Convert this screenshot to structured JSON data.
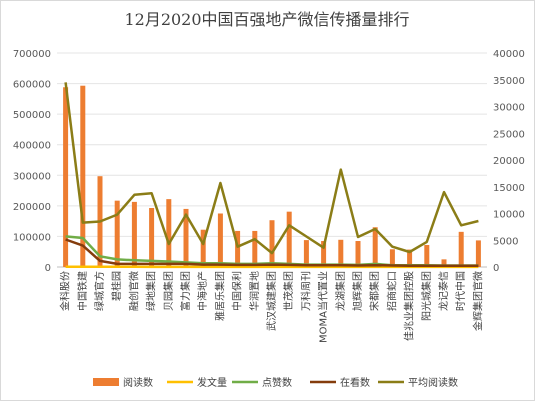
{
  "chart_data": {
    "type": "bar",
    "title": "12月2020中国百强地产微信传播量排行",
    "categories": [
      "金科股份",
      "中国铁建",
      "绿城官方",
      "碧桂园",
      "融创官微",
      "绿地集团",
      "贝园集团",
      "富力集团",
      "中海地产",
      "雅居乐集团",
      "中国保利",
      "华润置地",
      "武汉城建集团",
      "世茂集团",
      "万科周刊",
      "MOMA当代置业",
      "龙湖集团",
      "旭辉集团",
      "宋都集团",
      "招商蛇口",
      "佳兆业集团控股",
      "阳光城集团",
      "龙记泰信",
      "时代中国",
      "金辉集团官微"
    ],
    "y_left": {
      "ticks": [
        0,
        100000,
        200000,
        300000,
        400000,
        500000,
        600000,
        700000
      ],
      "ylim": [
        0,
        700000
      ]
    },
    "y_right": {
      "ticks": [
        0,
        5000,
        10000,
        15000,
        20000,
        25000,
        30000,
        35000,
        40000
      ],
      "ylim": [
        0,
        40000
      ]
    },
    "series": [
      {
        "name": "阅读数",
        "type": "bar",
        "axis": "left",
        "color": "#ED7D31",
        "values": [
          588000,
          593000,
          297000,
          217000,
          213000,
          193000,
          222000,
          190000,
          122000,
          175000,
          118000,
          118000,
          153000,
          181000,
          88000,
          85000,
          89000,
          85000,
          130000,
          58000,
          57000,
          72000,
          25000,
          115000,
          87000
        ]
      },
      {
        "name": "发文量",
        "type": "line",
        "axis": "left",
        "color": "#FFC000",
        "values": [
          1000,
          800,
          600,
          500,
          500,
          400,
          400,
          400,
          300,
          300,
          300,
          300,
          300,
          300,
          300,
          300,
          300,
          200,
          200,
          200,
          200,
          200,
          200,
          200,
          200
        ]
      },
      {
        "name": "点赞数",
        "type": "line",
        "axis": "left",
        "color": "#70AD47",
        "values": [
          100000,
          95000,
          35000,
          25000,
          22000,
          20000,
          18000,
          15000,
          12000,
          12000,
          10000,
          10000,
          12000,
          10000,
          8000,
          8000,
          8000,
          7000,
          10000,
          6000,
          6000,
          6000,
          5000,
          5000,
          5000
        ]
      },
      {
        "name": "在看数",
        "type": "line",
        "axis": "left",
        "color": "#843C0C",
        "values": [
          90000,
          70000,
          20000,
          10000,
          10000,
          10000,
          10000,
          10000,
          8000,
          8000,
          7000,
          7000,
          8000,
          7000,
          6000,
          6000,
          6000,
          5000,
          6000,
          5000,
          4000,
          4000,
          4000,
          4000,
          4000
        ]
      },
      {
        "name": "平均阅读数",
        "type": "line",
        "axis": "right",
        "color": "#8B7D17",
        "values": [
          34500,
          8300,
          8500,
          9800,
          13500,
          13800,
          4300,
          9800,
          4300,
          15700,
          3800,
          5200,
          2600,
          7800,
          5700,
          3600,
          18200,
          5600,
          7100,
          3800,
          2800,
          4700,
          14000,
          7800,
          8600
        ]
      }
    ],
    "legend": "bottom",
    "grid": true
  }
}
